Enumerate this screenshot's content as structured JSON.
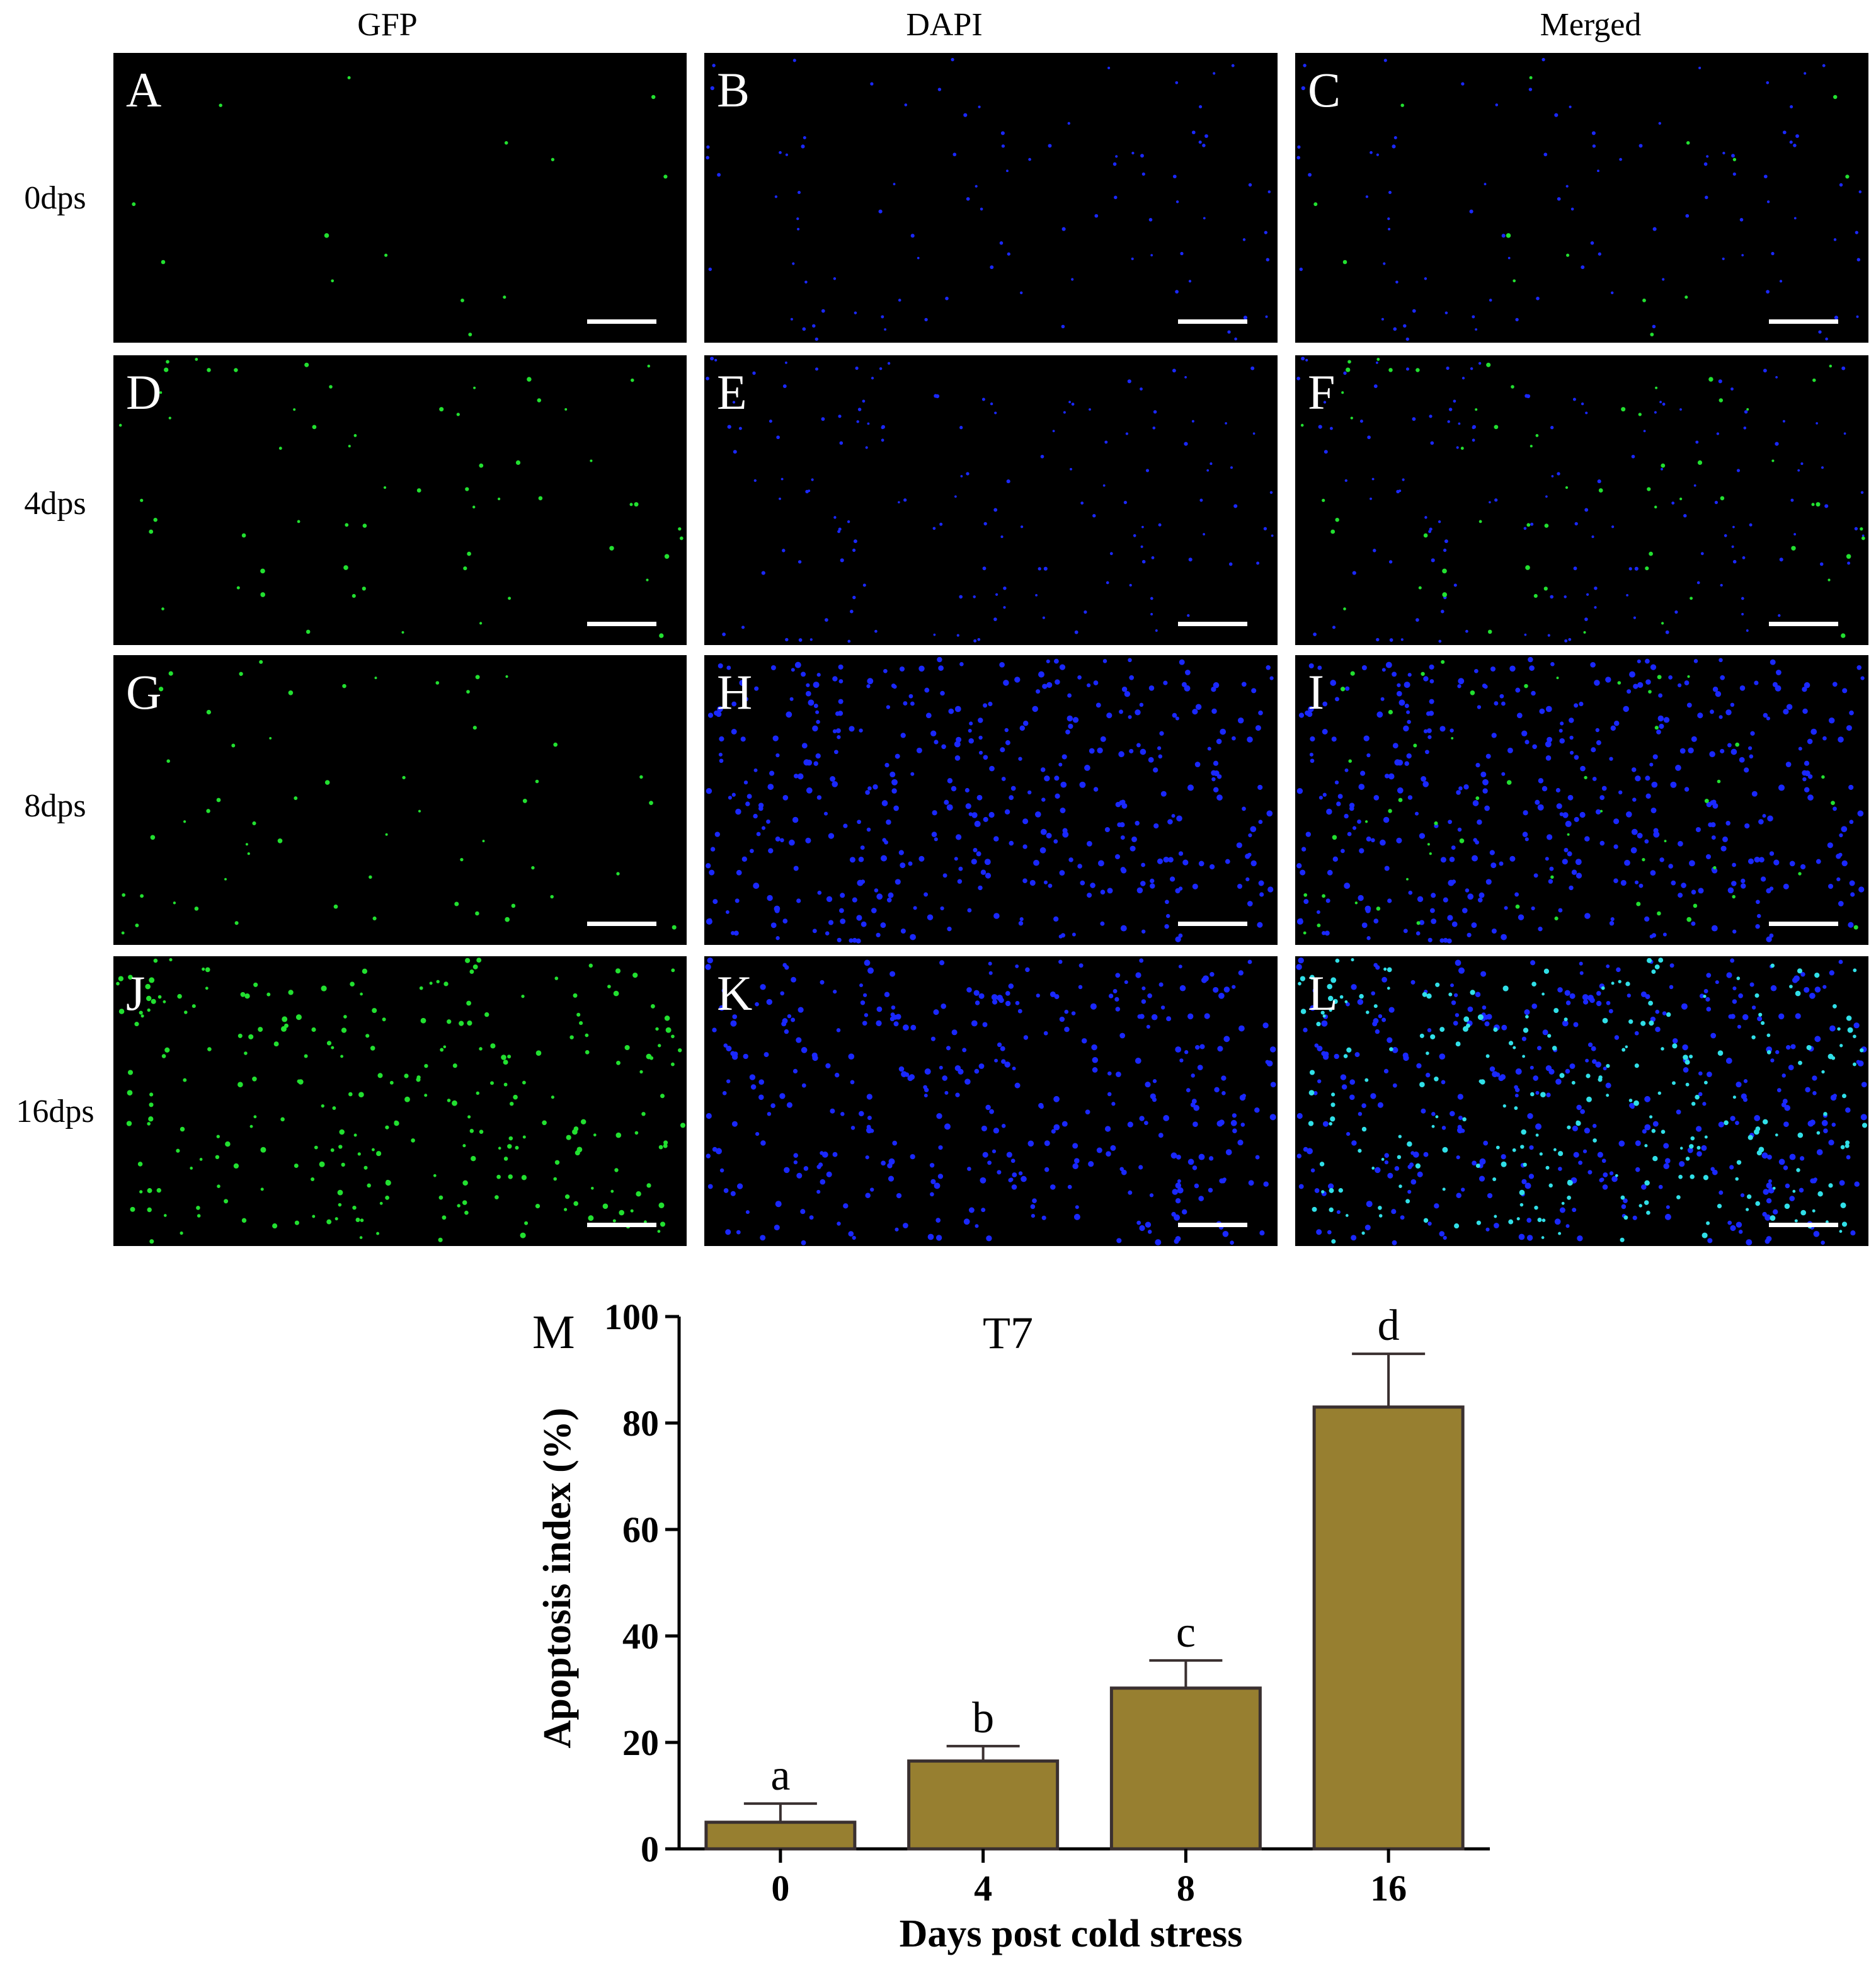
{
  "figure": {
    "columns": [
      "GFP",
      "DAPI",
      "Merged"
    ],
    "rows": [
      "0dps",
      "4dps",
      "8dps",
      "16dps"
    ],
    "panels": [
      [
        "A",
        "B",
        "C"
      ],
      [
        "D",
        "E",
        "F"
      ],
      [
        "G",
        "H",
        "I"
      ],
      [
        "J",
        "K",
        "L"
      ]
    ],
    "channel_colors": {
      "GFP": "#22e030",
      "DAPI": "#1a28ff",
      "Merged_overlap": "#30e0e8"
    },
    "chart_panel_letter": "M"
  },
  "chart_data": {
    "type": "bar",
    "title": "T7",
    "xlabel": "Days post cold stress",
    "ylabel": "Apoptosis index (%)",
    "categories": [
      "0",
      "4",
      "8",
      "16"
    ],
    "values": [
      5,
      16.5,
      30.2,
      83
    ],
    "errors": [
      3.5,
      2.8,
      5.2,
      10
    ],
    "significance_letters": [
      "a",
      "b",
      "c",
      "d"
    ],
    "ylim": [
      0,
      100
    ],
    "yticks": [
      "0",
      "20",
      "40",
      "60",
      "80",
      "100"
    ],
    "bar_color": "#977f30",
    "bar_edge_color": "#3a3030",
    "grid": false
  }
}
